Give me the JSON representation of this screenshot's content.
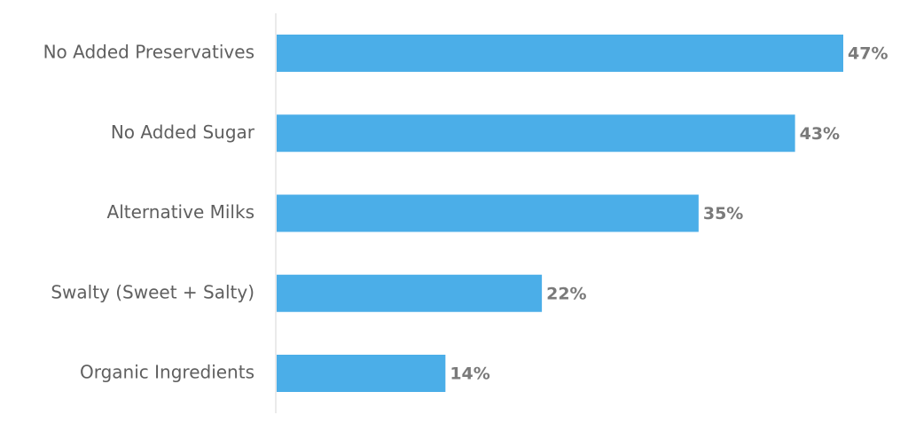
{
  "chart_data": {
    "type": "bar",
    "orientation": "horizontal",
    "categories": [
      "No Added Preservatives",
      "No Added Sugar",
      "Alternative Milks",
      "Swalty (Sweet + Salty)",
      "Organic Ingredients"
    ],
    "values": [
      47,
      43,
      35,
      22,
      14
    ],
    "value_labels": [
      "47%",
      "43%",
      "35%",
      "22%",
      "14%"
    ],
    "color": "#4baee8"
  }
}
